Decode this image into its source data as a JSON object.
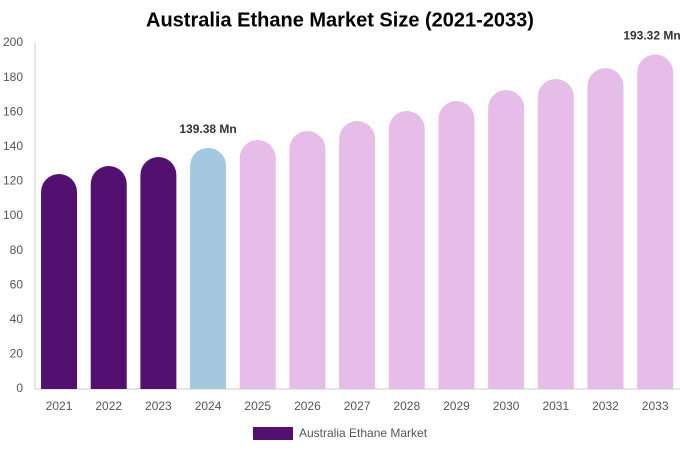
{
  "chart_data": {
    "type": "bar",
    "title": "Australia Ethane Market Size (2021-2033)",
    "categories": [
      "2021",
      "2022",
      "2023",
      "2024",
      "2025",
      "2026",
      "2027",
      "2028",
      "2029",
      "2030",
      "2031",
      "2032",
      "2033"
    ],
    "series": [
      {
        "name": "Australia Ethane Market",
        "color": "#541070",
        "values": [
          124.3,
          128.9,
          134.1,
          139.38,
          143.9,
          149.1,
          154.9,
          160.7,
          166.5,
          172.8,
          179.2,
          185.5,
          193.32
        ],
        "colors": [
          "#541070",
          "#541070",
          "#541070",
          "#a4c9de",
          "#e6bce8",
          "#e6bce8",
          "#e6bce8",
          "#e6bce8",
          "#e6bce8",
          "#e6bce8",
          "#e6bce8",
          "#e6bce8",
          "#e6bce8"
        ],
        "value_labels": [
          null,
          null,
          null,
          "139.38 Mn",
          null,
          null,
          null,
          null,
          null,
          null,
          null,
          null,
          "193.32 Mn"
        ]
      }
    ],
    "ylim": [
      0,
      200
    ],
    "yticks": [
      0,
      20,
      40,
      60,
      80,
      100,
      120,
      140,
      160,
      180,
      200
    ],
    "grid": false
  }
}
